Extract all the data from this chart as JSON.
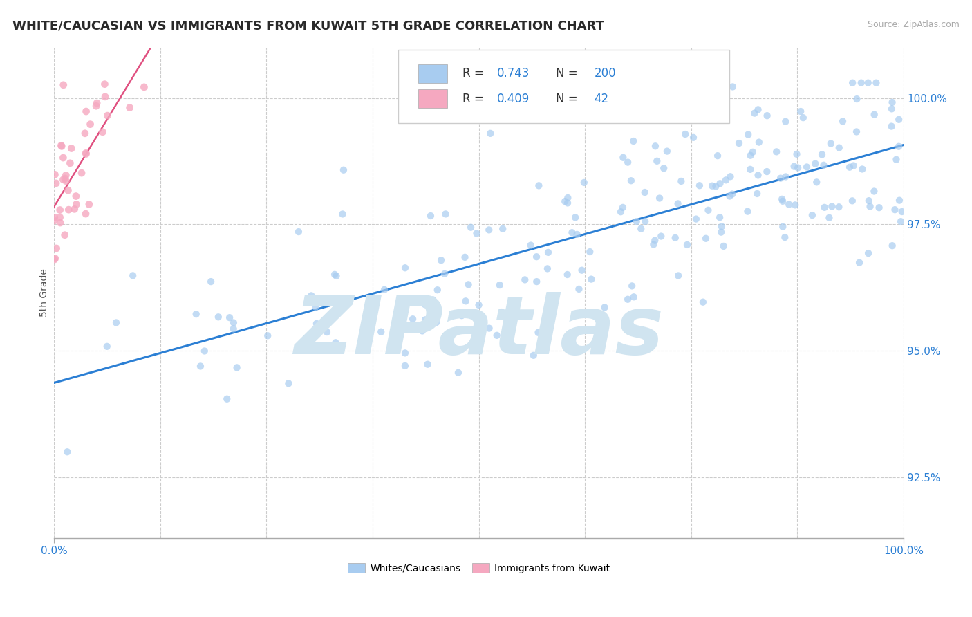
{
  "title": "WHITE/CAUCASIAN VS IMMIGRANTS FROM KUWAIT 5TH GRADE CORRELATION CHART",
  "source_text": "Source: ZipAtlas.com",
  "ylabel": "5th Grade",
  "xlim": [
    0.0,
    100.0
  ],
  "ylim": [
    91.3,
    101.0
  ],
  "yticks": [
    92.5,
    95.0,
    97.5,
    100.0
  ],
  "ytick_labels": [
    "92.5%",
    "95.0%",
    "97.5%",
    "100.0%"
  ],
  "blue_dot_color": "#A8CCF0",
  "pink_dot_color": "#F5A8C0",
  "trend_line_color": "#2B7FD4",
  "pink_line_color": "#E05080",
  "accent_blue": "#2B7FD4",
  "R_blue": 0.743,
  "N_blue": 200,
  "R_pink": 0.409,
  "N_pink": 42,
  "watermark": "ZIPatlas",
  "watermark_color": "#D0E4F0",
  "title_fontsize": 13,
  "tick_fontsize": 11,
  "grid_color": "#CCCCCC",
  "background_color": "#FFFFFF",
  "trend_y_start": 93.8,
  "trend_y_end": 99.3,
  "blue_seed": 123,
  "pink_seed": 55
}
